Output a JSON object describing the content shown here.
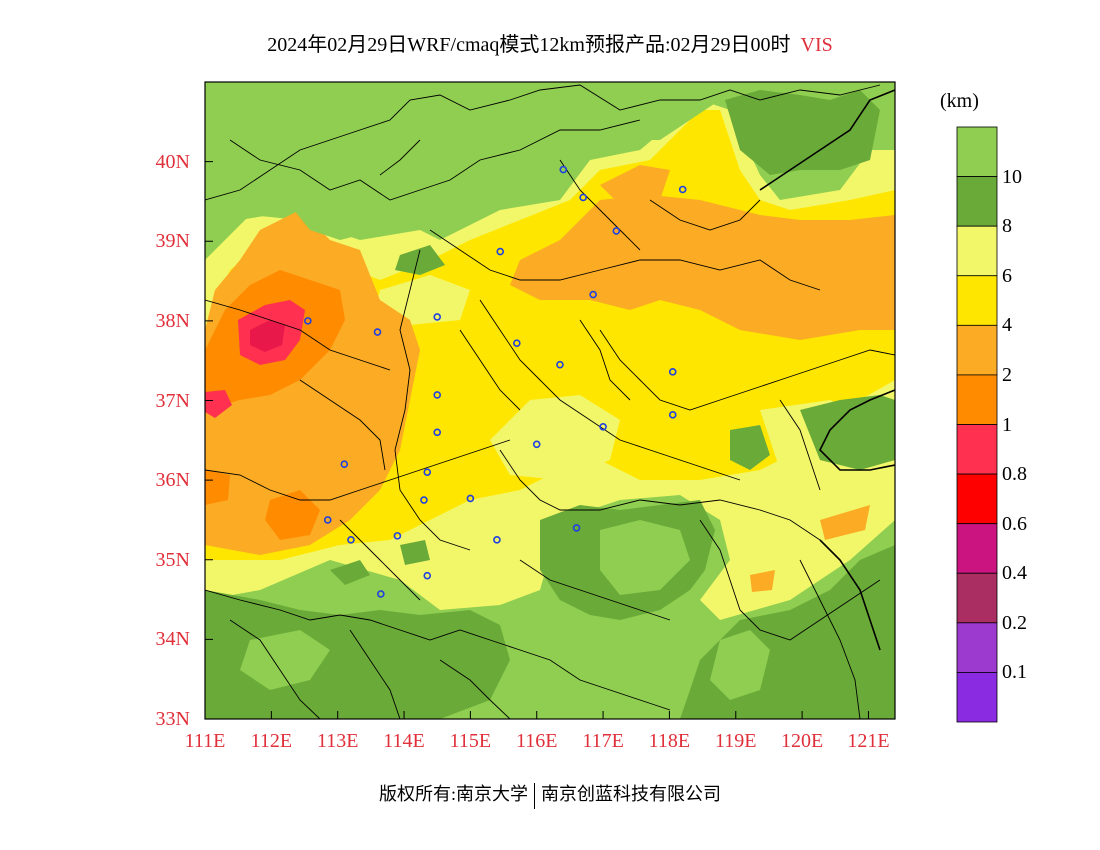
{
  "title": {
    "main": "2024年02月29日WRF/cmaq模式12km预报产品:02月29日00时",
    "variable": "VIS"
  },
  "axes": {
    "latitude_ticks": [
      "40N",
      "39N",
      "38N",
      "37N",
      "36N",
      "35N",
      "34N",
      "33N"
    ],
    "longitude_ticks": [
      "111E",
      "112E",
      "113E",
      "114E",
      "115E",
      "116E",
      "117E",
      "118E",
      "119E",
      "120E",
      "121E"
    ],
    "lon_range": [
      111,
      121.4
    ],
    "lat_range": [
      33,
      41
    ],
    "tick_color": "#e0303a"
  },
  "colorbar": {
    "unit": "(km)",
    "labels": [
      "10",
      "8",
      "6",
      "4",
      "2",
      "1",
      "0.8",
      "0.6",
      "0.4",
      "0.2",
      "0.1"
    ],
    "colors": [
      "#8fce50",
      "#6aaa38",
      "#f2f76a",
      "#ffe600",
      "#fbab24",
      "#ff8c00",
      "#ff3050",
      "#ff0000",
      "#cc1480",
      "#aa2e62",
      "#9c3ad0",
      "#8a2be2"
    ]
  },
  "stations": [
    {
      "lon": 116.4,
      "lat": 39.9
    },
    {
      "lon": 116.7,
      "lat": 39.55
    },
    {
      "lon": 117.2,
      "lat": 39.13
    },
    {
      "lon": 118.2,
      "lat": 39.65
    },
    {
      "lon": 115.45,
      "lat": 38.87
    },
    {
      "lon": 116.85,
      "lat": 38.33
    },
    {
      "lon": 112.55,
      "lat": 38.0
    },
    {
      "lon": 113.6,
      "lat": 37.86
    },
    {
      "lon": 114.5,
      "lat": 38.05
    },
    {
      "lon": 115.7,
      "lat": 37.72
    },
    {
      "lon": 116.35,
      "lat": 37.45
    },
    {
      "lon": 118.05,
      "lat": 37.36
    },
    {
      "lon": 114.5,
      "lat": 37.07
    },
    {
      "lon": 118.05,
      "lat": 36.82
    },
    {
      "lon": 117.0,
      "lat": 36.67
    },
    {
      "lon": 114.5,
      "lat": 36.6
    },
    {
      "lon": 116.0,
      "lat": 36.45
    },
    {
      "lon": 113.1,
      "lat": 36.2
    },
    {
      "lon": 114.35,
      "lat": 36.1
    },
    {
      "lon": 114.3,
      "lat": 35.75
    },
    {
      "lon": 115.0,
      "lat": 35.77
    },
    {
      "lon": 112.85,
      "lat": 35.5
    },
    {
      "lon": 116.6,
      "lat": 35.4
    },
    {
      "lon": 113.9,
      "lat": 35.3
    },
    {
      "lon": 113.2,
      "lat": 35.25
    },
    {
      "lon": 115.4,
      "lat": 35.25
    },
    {
      "lon": 114.35,
      "lat": 34.8
    },
    {
      "lon": 113.65,
      "lat": 34.57
    }
  ],
  "footer": {
    "copyright": "版权所有:南京大学",
    "company": "南京创蓝科技有限公司"
  }
}
